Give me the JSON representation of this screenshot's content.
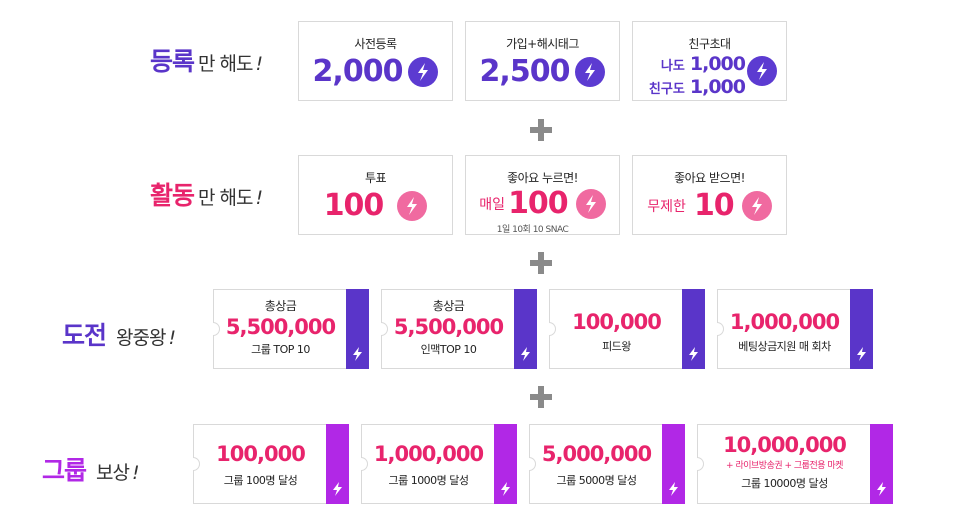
{
  "colors": {
    "purple": "#5a35c9",
    "pink": "#e8246c",
    "violet": "#b128e6",
    "grey_plus": "#8a8a8a"
  },
  "rows": {
    "register": {
      "big": "등록",
      "small": "만 해도",
      "ex": "!"
    },
    "activity": {
      "big": "활동",
      "small": "만 해도",
      "ex": "!"
    },
    "challenge": {
      "big": "도전",
      "small": "왕중왕",
      "ex": "!"
    },
    "group": {
      "big": "그룹",
      "small": "보상",
      "ex": "!"
    }
  },
  "register_cards": [
    {
      "title": "사전등록",
      "value": "2,000",
      "icon": "snac-coin-icon"
    },
    {
      "title": "가입+해시태그",
      "value": "2,500",
      "icon": "snac-coin-icon"
    },
    {
      "title": "친구초대",
      "line1_label": "나도",
      "line1_value": "1,000",
      "line2_label": "친구도",
      "line2_value": "1,000",
      "icon": "snac-coin-icon"
    }
  ],
  "activity_cards": [
    {
      "title": "투표",
      "value": "100",
      "icon": "snac-coin-icon"
    },
    {
      "title": "좋아요 누르면!",
      "prefix": "매일",
      "value": "100",
      "sub": "1일 10회 10 SNAC",
      "icon": "snac-coin-icon"
    },
    {
      "title": "좋아요 받으면!",
      "prefix": "무제한",
      "value": "10",
      "icon": "snac-coin-icon"
    }
  ],
  "challenge_tickets": [
    {
      "top": "총상금",
      "amount": "5,500,000",
      "bottom": "그룹 TOP 10",
      "icon": "bolt-icon"
    },
    {
      "top": "총상금",
      "amount": "5,500,000",
      "bottom": "인맥TOP 10",
      "icon": "bolt-icon"
    },
    {
      "top": "",
      "amount": "100,000",
      "bottom": "피드왕",
      "icon": "bolt-icon"
    },
    {
      "top": "",
      "amount": "1,000,000",
      "bottom": "베팅상금지원 매 회차",
      "icon": "bolt-icon"
    }
  ],
  "group_tickets": [
    {
      "amount": "100,000",
      "bottom": "그룹 100명 달성",
      "icon": "bolt-icon"
    },
    {
      "amount": "1,000,000",
      "bottom": "그룹 1000명 달성",
      "icon": "bolt-icon"
    },
    {
      "amount": "5,000,000",
      "bottom": "그룹 5000명 달성",
      "icon": "bolt-icon"
    },
    {
      "amount": "10,000,000",
      "extra": "+ 라이브방송권 + 그룹전용 마켓",
      "bottom": "그룹 10000명 달성",
      "icon": "bolt-icon"
    }
  ]
}
